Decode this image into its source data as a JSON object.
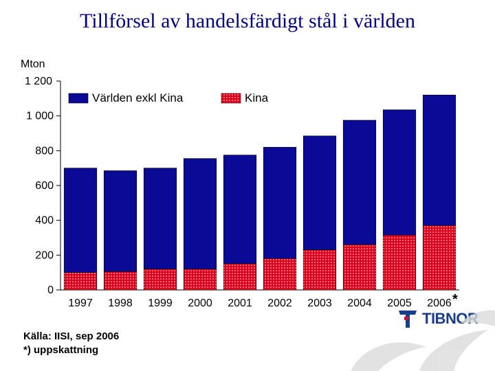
{
  "title": "Tillförsel av handelsfärdigt stål i världen",
  "unit": "Mton",
  "source": "Källa: IISI, sep 2006",
  "footnote": "*) uppskattning",
  "estimate_marker": "*",
  "logo_text": "TIBNOR",
  "colors": {
    "title": "#000080",
    "world_ex_china": "#0a0a96",
    "china": "#e3001b",
    "china_dots": "#ffffff"
  },
  "chart_data": {
    "type": "bar",
    "stacked": true,
    "categories": [
      "1997",
      "1998",
      "1999",
      "2000",
      "2001",
      "2002",
      "2003",
      "2004",
      "2005",
      "2006"
    ],
    "series": [
      {
        "name": "Kina",
        "values": [
          100,
          105,
          120,
          120,
          150,
          180,
          230,
          260,
          315,
          370
        ]
      },
      {
        "name": "Världen exkl Kina",
        "values": [
          600,
          580,
          580,
          635,
          625,
          640,
          655,
          715,
          720,
          750
        ]
      }
    ],
    "totals": [
      700,
      685,
      700,
      755,
      775,
      820,
      885,
      975,
      1035,
      1120
    ],
    "ylim": [
      0,
      1200
    ],
    "yticks": [
      0,
      200,
      400,
      600,
      800,
      1000,
      1200
    ],
    "ytick_labels": [
      "0",
      "200",
      "400",
      "600",
      "800",
      "1 000",
      "1 200"
    ],
    "legend": [
      {
        "label": "Världen exkl Kina",
        "series": "Världen exkl Kina"
      },
      {
        "label": "Kina",
        "series": "Kina"
      }
    ],
    "legend_position": "top",
    "grid": false
  }
}
